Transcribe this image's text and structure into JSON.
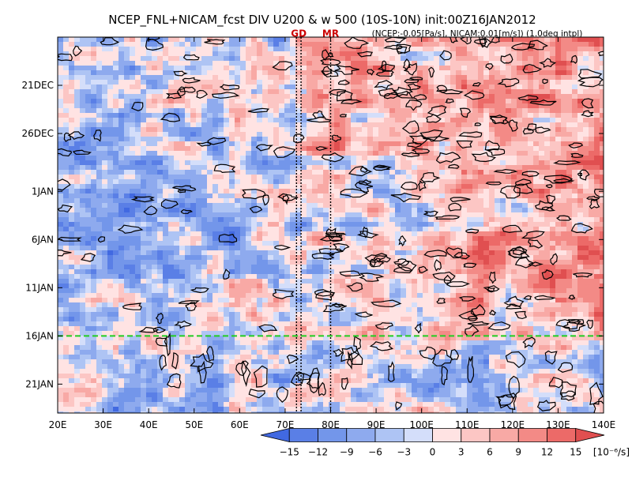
{
  "chart_data": {
    "type": "heatmap",
    "title": "NCEP_FNL+NICAM_fcst DIV U200 & w 500 (10S-10N) init:00Z16JAN2012",
    "subtitle": "(NCEP:-0.05[Pa/s], NICAM:0.01[m/s]) (1.0deg intpl)",
    "x_axis": {
      "range": [
        "20E",
        "140E"
      ],
      "ticks": [
        "20E",
        "30E",
        "40E",
        "50E",
        "60E",
        "70E",
        "80E",
        "90E",
        "100E",
        "110E",
        "120E",
        "130E",
        "140E"
      ],
      "values": [
        20,
        30,
        40,
        50,
        60,
        70,
        80,
        90,
        100,
        110,
        120,
        130,
        140
      ]
    },
    "y_axis": {
      "range": [
        "16DEC2011",
        "24JAN2012"
      ],
      "ticks": [
        "21DEC",
        "26DEC",
        "1JAN",
        "6JAN",
        "11JAN",
        "16JAN",
        "21JAN"
      ],
      "direction": "time increases downward"
    },
    "markers": [
      {
        "label": "GD",
        "type": "vertical dotted lines",
        "lon": [
          72.5,
          73.5
        ],
        "color": "#cc0000"
      },
      {
        "label": "MR",
        "type": "vertical dotted line",
        "lon": [
          80
        ],
        "color": "#cc0000"
      },
      {
        "label": "init 16JAN",
        "type": "horizontal dashed line",
        "date": "16JAN",
        "color": "#22cc22"
      }
    ],
    "colorbar": {
      "ticks": [
        "-15",
        "-12",
        "-9",
        "-6",
        "-3",
        "0",
        "3",
        "6",
        "9",
        "12",
        "15"
      ],
      "unit": "[10⁻⁶/s]",
      "colors": [
        "#4169e1",
        "#5a7fe6",
        "#7396ea",
        "#8eaaee",
        "#aec4f4",
        "#d4defa",
        "#ffe3e3",
        "#fcc6c4",
        "#f8a9a5",
        "#f38a86",
        "#ec6a68",
        "#e04f50"
      ]
    },
    "features": [
      "positive divergence (red) dominant east of 80E, strongest 100E-140E from mid-Dec to early Jan",
      "negative divergence (blue) dominant 25E-75E",
      "black contours mark w500 upward motion, dense over 80E-140E before 16JAN",
      "after 16JAN (forecast) sparser smoother contours"
    ]
  }
}
